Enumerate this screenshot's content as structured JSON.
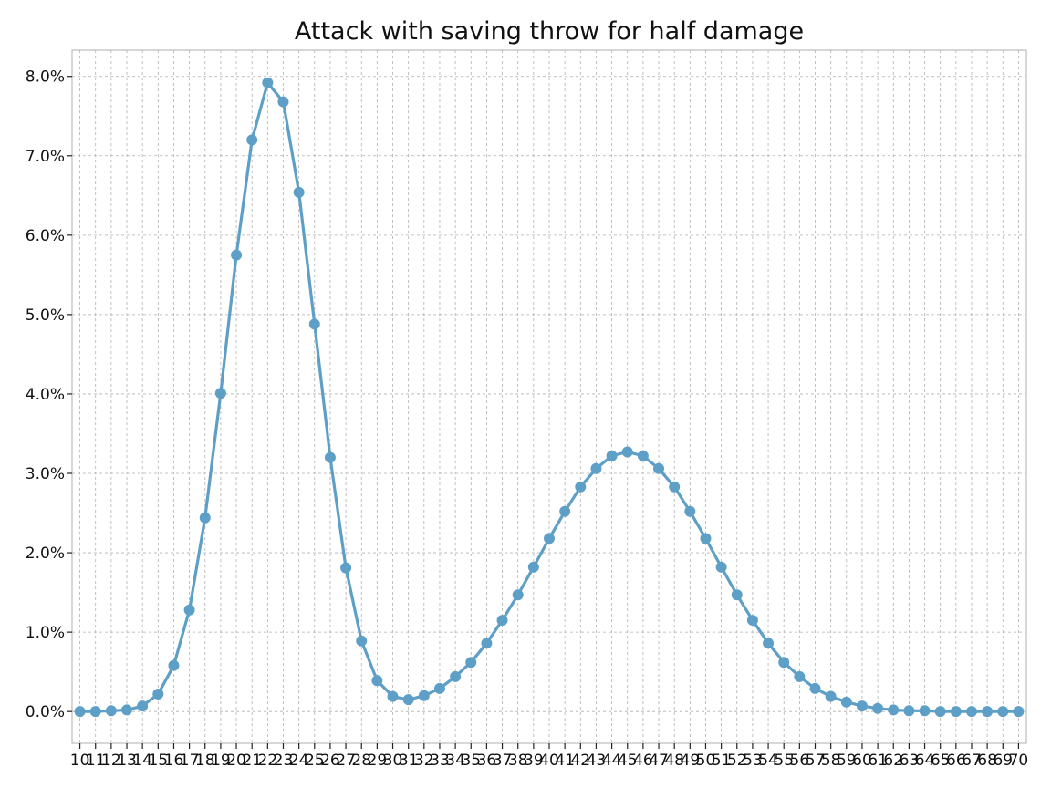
{
  "colors": {
    "series": "#5e9fc7",
    "grid": "#b0b0b0",
    "frame": "#bcbcbc",
    "text": "#111111"
  },
  "chart_data": {
    "type": "line",
    "title": "Attack with saving throw for half damage",
    "xlabel": "",
    "ylabel": "",
    "x": [
      10,
      11,
      12,
      13,
      14,
      15,
      16,
      17,
      18,
      19,
      20,
      21,
      22,
      23,
      24,
      25,
      26,
      27,
      28,
      29,
      30,
      31,
      32,
      33,
      34,
      35,
      36,
      37,
      38,
      39,
      40,
      41,
      42,
      43,
      44,
      45,
      46,
      47,
      48,
      49,
      50,
      51,
      52,
      53,
      54,
      55,
      56,
      57,
      58,
      59,
      60,
      61,
      62,
      63,
      64,
      65,
      66,
      67,
      68,
      69,
      70
    ],
    "xlim": [
      9.5,
      70.5
    ],
    "ylim": [
      -0.4,
      8.33
    ],
    "y_format": "percent_one_decimal",
    "y_ticks": [
      0,
      1,
      2,
      3,
      4,
      5,
      6,
      7,
      8
    ],
    "grid": true,
    "legend": "none",
    "markers": true,
    "series": [
      {
        "values": [
          0.0,
          0.0,
          0.01,
          0.02,
          0.07,
          0.22,
          0.58,
          1.28,
          2.44,
          4.01,
          5.75,
          7.2,
          7.92,
          7.68,
          6.54,
          4.88,
          3.2,
          1.81,
          0.89,
          0.39,
          0.19,
          0.15,
          0.2,
          0.29,
          0.44,
          0.62,
          0.86,
          1.15,
          1.47,
          1.82,
          2.18,
          2.52,
          2.83,
          3.06,
          3.22,
          3.27,
          3.22,
          3.06,
          2.83,
          2.52,
          2.18,
          1.82,
          1.47,
          1.15,
          0.86,
          0.62,
          0.44,
          0.29,
          0.19,
          0.12,
          0.07,
          0.04,
          0.02,
          0.01,
          0.01,
          0.0,
          0.0,
          0.0,
          0.0,
          0.0,
          0.0
        ]
      }
    ]
  }
}
